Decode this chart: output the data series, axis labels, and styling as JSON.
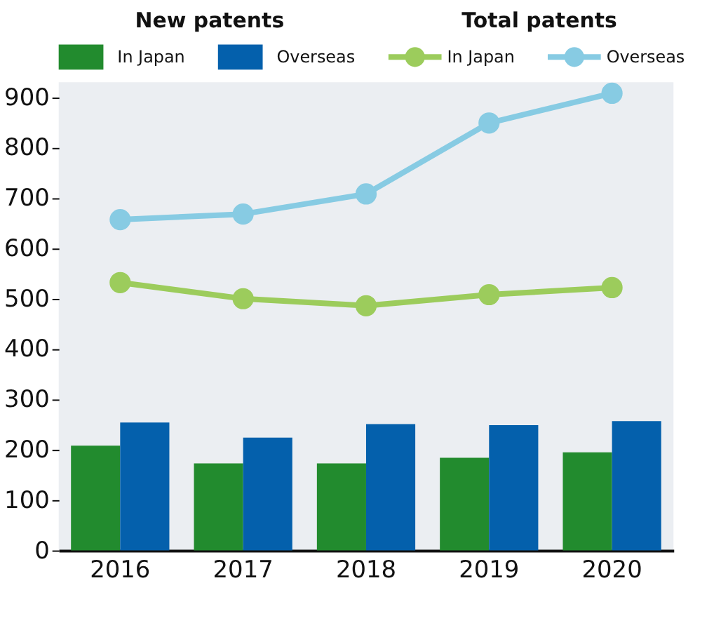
{
  "chart_data": {
    "type": "bar",
    "categories": [
      "2016",
      "2017",
      "2018",
      "2019",
      "2020"
    ],
    "series": [
      {
        "name": "In Japan",
        "color": "#228b2e",
        "values": [
          208,
          173,
          173,
          184,
          195
        ]
      },
      {
        "name": "Overseas",
        "color": "#0460ac",
        "values": [
          254,
          224,
          251,
          249,
          257
        ]
      },
      {
        "name": "In Japan",
        "type": "line",
        "color": "#9ccc5c",
        "values": [
          532,
          500,
          486,
          508,
          522
        ]
      },
      {
        "name": "Overseas",
        "type": "line",
        "color": "#87cbe3",
        "values": [
          657,
          668,
          708,
          849,
          908
        ]
      }
    ],
    "annotations": [
      "New patents",
      "Total patents"
    ],
    "ylim": [
      0,
      930
    ],
    "yticks": [
      0,
      100,
      200,
      300,
      400,
      500,
      600,
      700,
      800,
      900
    ],
    "grid": false,
    "legend": "top",
    "marker": "circle",
    "line_style": "solid"
  }
}
